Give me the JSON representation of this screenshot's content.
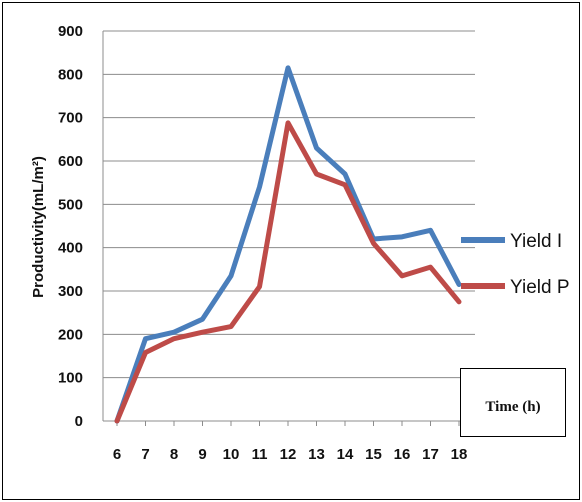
{
  "chart_data": {
    "type": "line",
    "title": "",
    "xlabel": "",
    "ylabel": "Productivity(mL/m²)",
    "x": [
      6,
      7,
      8,
      9,
      10,
      11,
      12,
      13,
      14,
      15,
      16,
      17,
      18
    ],
    "ylim": [
      0,
      900
    ],
    "yticks": [
      0,
      100,
      200,
      300,
      400,
      500,
      600,
      700,
      800,
      900
    ],
    "grid": "horizontal",
    "legend_position": "right",
    "annotation": "Time (h)",
    "series": [
      {
        "name": "Yield I",
        "color": "#4a7ebb",
        "values": [
          0,
          190,
          205,
          235,
          335,
          540,
          815,
          630,
          570,
          420,
          425,
          440,
          315
        ]
      },
      {
        "name": "Yield P",
        "color": "#be4b48",
        "values": [
          0,
          158,
          190,
          205,
          218,
          310,
          688,
          570,
          545,
          410,
          335,
          355,
          275
        ]
      }
    ]
  }
}
